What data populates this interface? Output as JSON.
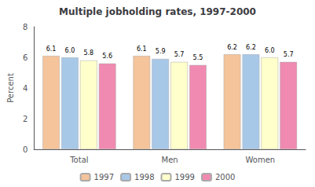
{
  "chart_data": {
    "type": "bar",
    "title": "Multiple jobholding rates, 1997-2000",
    "ylabel": "Percent",
    "categories": [
      "Total",
      "Men",
      "Women"
    ],
    "series": [
      {
        "name": "1997",
        "color": "#F5C49A",
        "values": [
          6.1,
          6.1,
          6.2
        ],
        "value_labels": [
          "6.1",
          "6.1",
          "6.2"
        ]
      },
      {
        "name": "1998",
        "color": "#A8C8E8",
        "values": [
          6.0,
          5.9,
          6.2
        ],
        "value_labels": [
          "6.0",
          "5.9",
          "6.2"
        ]
      },
      {
        "name": "1999",
        "color": "#FFFFCC",
        "values": [
          5.8,
          5.7,
          6.0
        ],
        "value_labels": [
          "5.8",
          "5.7",
          "6.0"
        ]
      },
      {
        "name": "2000",
        "color": "#F08AB0",
        "values": [
          5.6,
          5.5,
          5.7
        ],
        "value_labels": [
          "5.6",
          "5.5",
          "5.7"
        ]
      }
    ],
    "ylim": [
      0,
      8
    ],
    "yticks": [
      0,
      2,
      4,
      6,
      8
    ],
    "grid": false,
    "legend": "bottom",
    "data_labels": true
  }
}
